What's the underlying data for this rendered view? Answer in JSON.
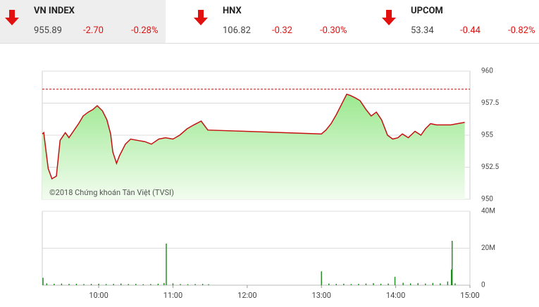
{
  "indices": [
    {
      "name": "VN INDEX",
      "value": "955.89",
      "change": "-2.70",
      "percent": "-0.28%"
    },
    {
      "name": "HNX",
      "value": "106.82",
      "change": "-0.32",
      "percent": "-0.30%"
    },
    {
      "name": "UPCOM",
      "value": "53.34",
      "change": "-0.44",
      "percent": "-0.82%"
    }
  ],
  "chart_data": [
    {
      "type": "area",
      "annotation": "©2018 Chứng khoán Tân Việt (TVSI)",
      "color": "#c41212",
      "reference": 958.59,
      "reference_color": "#c41212",
      "x": [
        9.24,
        9.26,
        9.32,
        9.37,
        9.43,
        9.48,
        9.55,
        9.6,
        9.67,
        9.73,
        9.79,
        9.86,
        9.92,
        9.98,
        10.05,
        10.11,
        10.16,
        10.19,
        10.24,
        10.28,
        10.36,
        10.43,
        10.52,
        10.62,
        10.71,
        10.81,
        10.9,
        11.0,
        11.09,
        11.19,
        11.28,
        11.38,
        11.47,
        13.0,
        13.06,
        13.13,
        13.2,
        13.27,
        13.34,
        13.39,
        13.46,
        13.52,
        13.6,
        13.67,
        13.74,
        13.81,
        13.89,
        13.96,
        14.03,
        14.09,
        14.17,
        14.26,
        14.34,
        14.4,
        14.47,
        14.55,
        14.74,
        14.93
      ],
      "values": [
        955.1,
        955.2,
        952.4,
        951.6,
        951.8,
        954.6,
        955.2,
        954.8,
        955.4,
        955.9,
        956.5,
        956.8,
        957.0,
        957.3,
        956.9,
        956.2,
        955.1,
        953.7,
        952.8,
        953.4,
        954.3,
        954.7,
        954.6,
        954.5,
        954.3,
        954.7,
        954.8,
        954.7,
        955.0,
        955.5,
        955.8,
        956.1,
        955.4,
        955.1,
        955.4,
        955.9,
        956.6,
        957.4,
        958.2,
        958.1,
        957.9,
        957.7,
        957.0,
        956.5,
        956.8,
        956.2,
        955.0,
        954.7,
        954.8,
        955.1,
        954.8,
        955.3,
        955.0,
        955.5,
        955.9,
        955.8,
        955.8,
        956.0
      ],
      "xlim": [
        9.24,
        15
      ],
      "ylim": [
        950,
        960
      ],
      "yticks": [
        950,
        952.5,
        955,
        957.5,
        960
      ],
      "grid": true
    },
    {
      "type": "bar",
      "color": "#1a8a1a",
      "x": [
        9.25,
        9.3,
        9.4,
        9.5,
        9.6,
        9.7,
        9.8,
        9.9,
        10.0,
        10.1,
        10.2,
        10.3,
        10.4,
        10.5,
        10.6,
        10.7,
        10.8,
        10.88,
        10.91,
        11.0,
        11.1,
        11.2,
        11.3,
        11.4,
        11.48,
        13.0,
        13.1,
        13.2,
        13.3,
        13.4,
        13.5,
        13.6,
        13.7,
        13.8,
        13.9,
        13.99,
        14.1,
        14.2,
        14.3,
        14.4,
        14.5,
        14.6,
        14.7,
        14.75,
        14.76,
        14.8
      ],
      "values": [
        4000000,
        1000000,
        800000,
        900000,
        700000,
        800000,
        600000,
        700000,
        800000,
        600000,
        700000,
        900000,
        600000,
        700000,
        500000,
        600000,
        800000,
        1200000,
        22500000,
        1000000,
        600000,
        500000,
        600000,
        700000,
        500000,
        7500000,
        900000,
        700000,
        800000,
        600000,
        700000,
        900000,
        1100000,
        800000,
        900000,
        4500000,
        1300000,
        1000000,
        1100000,
        900000,
        1200000,
        1000000,
        2000000,
        8500000,
        24000000,
        1000000
      ],
      "xlim": [
        9.24,
        15
      ],
      "ylim": [
        0,
        40000000
      ],
      "yticks": [
        0,
        {
          "value": 20000000,
          "label": "20M"
        },
        {
          "value": 40000000,
          "label": "40M"
        }
      ],
      "xticks": [
        {
          "value": 10,
          "label": "10:00"
        },
        {
          "value": 11,
          "label": "11:00"
        },
        {
          "value": 12,
          "label": "12:00"
        },
        {
          "value": 13,
          "label": "13:00"
        },
        {
          "value": 14,
          "label": "14:00"
        },
        {
          "value": 15,
          "label": "15:00"
        }
      ],
      "grid": true
    }
  ]
}
